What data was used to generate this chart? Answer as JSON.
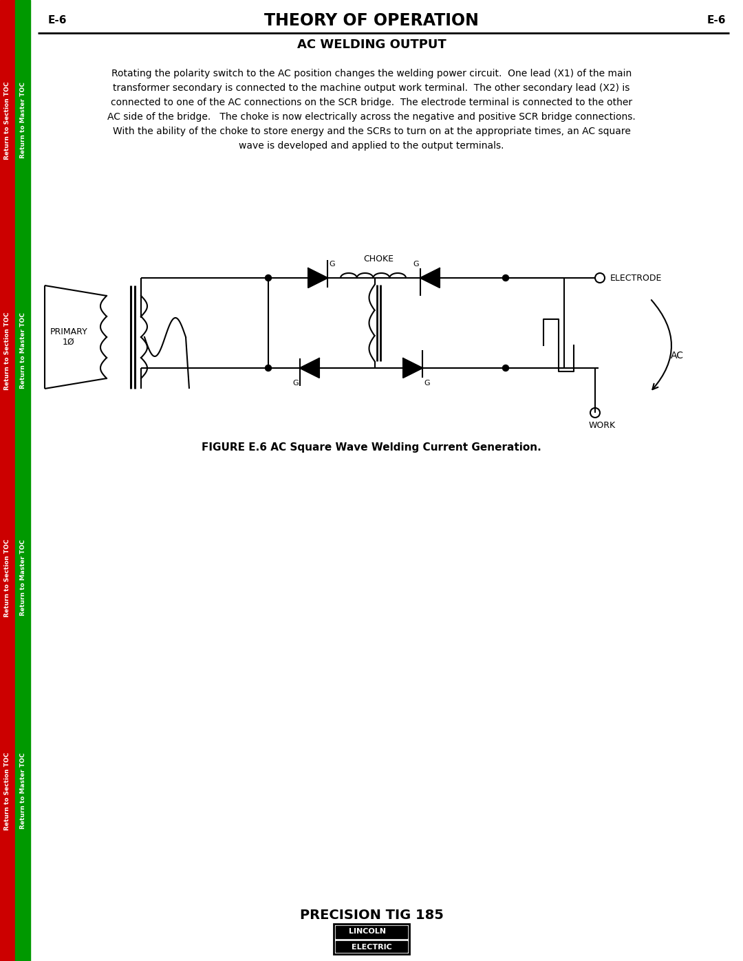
{
  "page_header_left": "E-6",
  "page_header_center": "THEORY OF OPERATION",
  "page_header_right": "E-6",
  "section_title": "AC WELDING OUTPUT",
  "body_text_lines": [
    "Rotating the polarity switch to the AC position changes the welding power circuit.  One lead (X1) of the main",
    "transformer secondary is connected to the machine output work terminal.  The other secondary lead (X2) is",
    "connected to one of the AC connections on the SCR bridge.  The electrode terminal is connected to the other",
    "AC side of the bridge.   The choke is now electrically across the negative and positive SCR bridge connections.",
    "With the ability of the choke to store energy and the SCRs to turn on at the appropriate times, an AC square",
    "wave is developed and applied to the output terminals."
  ],
  "figure_caption": "FIGURE E.6 AC Square Wave Welding Current Generation.",
  "footer_text": "PRECISION TIG 185",
  "bg_color": "#ffffff",
  "text_color": "#000000",
  "sidebar_red_color": "#cc0000",
  "sidebar_green_color": "#009900",
  "sidebar_red_text": "Return to Section TOC",
  "sidebar_green_text": "Return to Master TOC",
  "sidebar_text_color_red": "#cc0000",
  "sidebar_text_color_green": "#009900"
}
